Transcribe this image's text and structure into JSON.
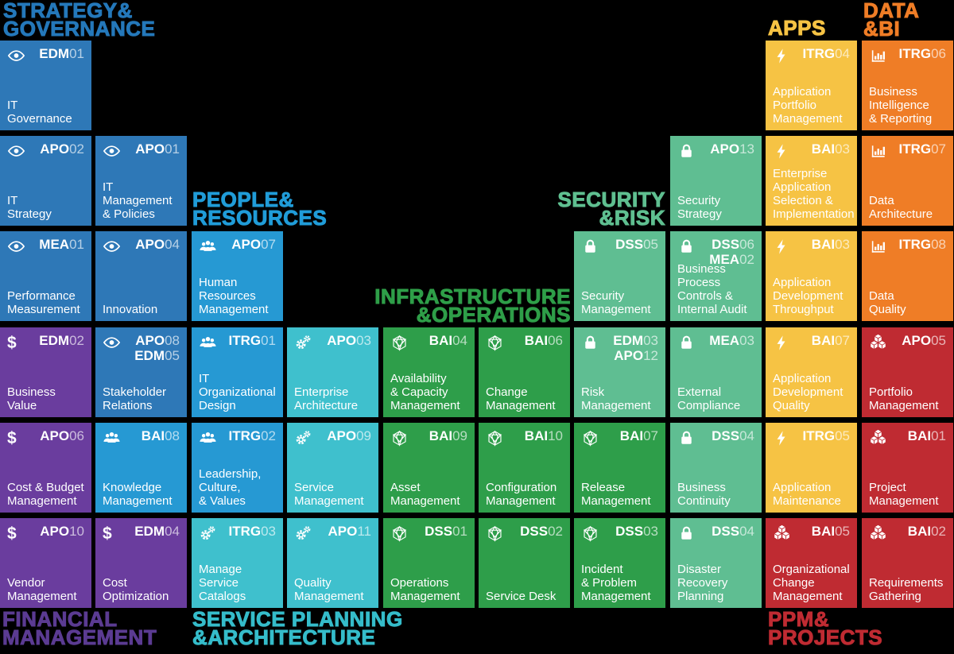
{
  "headers": {
    "strategy": {
      "text": "STRATEGY&\nGOVERNANCE",
      "color": "#2478ba"
    },
    "people": {
      "text": "PEOPLE&\nRESOURCES",
      "color": "#209cd8"
    },
    "infrastructure": {
      "text": "INFRASTRUCTURE\n&OPERATIONS",
      "color": "#2e9e48"
    },
    "security": {
      "text": "SECURITY\n&RISK",
      "color": "#5fbf90"
    },
    "apps": {
      "text": "APPS",
      "color": "#f6c344"
    },
    "data_bi": {
      "text": "DATA\n&BI",
      "color": "#ef7d26"
    },
    "financial": {
      "text": "FINANCIAL\nMANAGEMENT",
      "color": "#5b3b92"
    },
    "service_planning": {
      "text": "SERVICE PLANNING\n&ARCHITECTURE",
      "color": "#35bcca"
    },
    "ppm": {
      "text": "PPM&\nPROJECTS",
      "color": "#bf2b32"
    }
  },
  "palette": {
    "blue": "#2e78b7",
    "lightblue": "#2699d3",
    "teal": "#3fc0cd",
    "green": "#2e9e4a",
    "seafoam": "#5fbe92",
    "yellow": "#f6c344",
    "orange": "#ef7d26",
    "red": "#bf2b32",
    "purple": "#6a3d9e"
  },
  "tiles": [
    {
      "col": 1,
      "row": 1,
      "color": "blue",
      "icon": "eye",
      "codes": [
        {
          "prefix": "EDM",
          "num": "01"
        }
      ],
      "name": "IT\nGovernance"
    },
    {
      "col": 9,
      "row": 1,
      "color": "yellow",
      "icon": "bolt",
      "codes": [
        {
          "prefix": "ITRG",
          "num": "04"
        }
      ],
      "name": "Application\nPortfolio\nManagement"
    },
    {
      "col": 10,
      "row": 1,
      "color": "orange",
      "icon": "chart",
      "codes": [
        {
          "prefix": "ITRG",
          "num": "06"
        }
      ],
      "name": "Business\nIntelligence\n& Reporting"
    },
    {
      "col": 1,
      "row": 2,
      "color": "blue",
      "icon": "eye",
      "codes": [
        {
          "prefix": "APO",
          "num": "02"
        }
      ],
      "name": "IT\nStrategy"
    },
    {
      "col": 2,
      "row": 2,
      "color": "blue",
      "icon": "eye",
      "codes": [
        {
          "prefix": "APO",
          "num": "01"
        }
      ],
      "name": "IT Management\n& Policies"
    },
    {
      "col": 8,
      "row": 2,
      "color": "seafoam",
      "icon": "lock",
      "codes": [
        {
          "prefix": "APO",
          "num": "13"
        }
      ],
      "name": "Security\nStrategy"
    },
    {
      "col": 9,
      "row": 2,
      "color": "yellow",
      "icon": "bolt",
      "codes": [
        {
          "prefix": "BAI",
          "num": "03"
        }
      ],
      "name": "Enterprise\nApplication\nSelection &\nImplementation"
    },
    {
      "col": 10,
      "row": 2,
      "color": "orange",
      "icon": "chart",
      "codes": [
        {
          "prefix": "ITRG",
          "num": "07"
        }
      ],
      "name": "Data\nArchitecture"
    },
    {
      "col": 1,
      "row": 3,
      "color": "blue",
      "icon": "eye",
      "codes": [
        {
          "prefix": "MEA",
          "num": "01"
        }
      ],
      "name": "Performance\nMeasurement"
    },
    {
      "col": 2,
      "row": 3,
      "color": "blue",
      "icon": "eye",
      "codes": [
        {
          "prefix": "APO",
          "num": "04"
        }
      ],
      "name": "Innovation"
    },
    {
      "col": 3,
      "row": 3,
      "color": "lightblue",
      "icon": "people",
      "codes": [
        {
          "prefix": "APO",
          "num": "07"
        }
      ],
      "name": "Human\nResources\nManagement"
    },
    {
      "col": 7,
      "row": 3,
      "color": "seafoam",
      "icon": "lock",
      "codes": [
        {
          "prefix": "DSS",
          "num": "05"
        }
      ],
      "name": "Security\nManagement"
    },
    {
      "col": 8,
      "row": 3,
      "color": "seafoam",
      "icon": "lock",
      "codes": [
        {
          "prefix": "DSS",
          "num": "06"
        },
        {
          "prefix": "MEA",
          "num": "02"
        }
      ],
      "name": "Business\nProcess\nControls &\nInternal Audit"
    },
    {
      "col": 9,
      "row": 3,
      "color": "yellow",
      "icon": "bolt",
      "codes": [
        {
          "prefix": "BAI",
          "num": "03"
        }
      ],
      "name": "Application\nDevelopment\nThroughput"
    },
    {
      "col": 10,
      "row": 3,
      "color": "orange",
      "icon": "chart",
      "codes": [
        {
          "prefix": "ITRG",
          "num": "08"
        }
      ],
      "name": "Data\nQuality"
    },
    {
      "col": 1,
      "row": 4,
      "color": "purple",
      "icon": "dollar",
      "codes": [
        {
          "prefix": "EDM",
          "num": "02"
        }
      ],
      "name": "Business\nValue"
    },
    {
      "col": 2,
      "row": 4,
      "color": "blue",
      "icon": "eye",
      "codes": [
        {
          "prefix": "APO",
          "num": "08"
        },
        {
          "prefix": "EDM",
          "num": "05"
        }
      ],
      "name": "Stakeholder\nRelations"
    },
    {
      "col": 3,
      "row": 4,
      "color": "lightblue",
      "icon": "people",
      "codes": [
        {
          "prefix": "ITRG",
          "num": "01"
        }
      ],
      "name": "IT\nOrganizational\nDesign"
    },
    {
      "col": 4,
      "row": 4,
      "color": "teal",
      "icon": "gears",
      "codes": [
        {
          "prefix": "APO",
          "num": "03"
        }
      ],
      "name": "Enterprise\nArchitecture"
    },
    {
      "col": 5,
      "row": 4,
      "color": "green",
      "icon": "hex",
      "codes": [
        {
          "prefix": "BAI",
          "num": "04"
        }
      ],
      "name": "Availability\n& Capacity\nManagement"
    },
    {
      "col": 6,
      "row": 4,
      "color": "green",
      "icon": "hex",
      "codes": [
        {
          "prefix": "BAI",
          "num": "06"
        }
      ],
      "name": "Change\nManagement"
    },
    {
      "col": 7,
      "row": 4,
      "color": "seafoam",
      "icon": "lock",
      "codes": [
        {
          "prefix": "EDM",
          "num": "03"
        },
        {
          "prefix": "APO",
          "num": "12"
        }
      ],
      "name": "Risk\nManagement"
    },
    {
      "col": 8,
      "row": 4,
      "color": "seafoam",
      "icon": "lock",
      "codes": [
        {
          "prefix": "MEA",
          "num": "03"
        }
      ],
      "name": "External\nCompliance"
    },
    {
      "col": 9,
      "row": 4,
      "color": "yellow",
      "icon": "bolt",
      "codes": [
        {
          "prefix": "BAI",
          "num": "07"
        }
      ],
      "name": "Application\nDevelopment\nQuality"
    },
    {
      "col": 10,
      "row": 4,
      "color": "red",
      "icon": "cubes",
      "codes": [
        {
          "prefix": "APO",
          "num": "05"
        }
      ],
      "name": "Portfolio\nManagement"
    },
    {
      "col": 1,
      "row": 5,
      "color": "purple",
      "icon": "dollar",
      "codes": [
        {
          "prefix": "APO",
          "num": "06"
        }
      ],
      "name": "Cost & Budget\nManagement"
    },
    {
      "col": 2,
      "row": 5,
      "color": "lightblue",
      "icon": "people",
      "codes": [
        {
          "prefix": "BAI",
          "num": "08"
        }
      ],
      "name": "Knowledge\nManagement"
    },
    {
      "col": 3,
      "row": 5,
      "color": "lightblue",
      "icon": "people",
      "codes": [
        {
          "prefix": "ITRG",
          "num": "02"
        }
      ],
      "name": "Leadership,\nCulture,\n& Values"
    },
    {
      "col": 4,
      "row": 5,
      "color": "teal",
      "icon": "gears",
      "codes": [
        {
          "prefix": "APO",
          "num": "09"
        }
      ],
      "name": "Service\nManagement"
    },
    {
      "col": 5,
      "row": 5,
      "color": "green",
      "icon": "hex",
      "codes": [
        {
          "prefix": "BAI",
          "num": "09"
        }
      ],
      "name": "Asset\nManagement"
    },
    {
      "col": 6,
      "row": 5,
      "color": "green",
      "icon": "hex",
      "codes": [
        {
          "prefix": "BAI",
          "num": "10"
        }
      ],
      "name": "Configuration\nManagement"
    },
    {
      "col": 7,
      "row": 5,
      "color": "green",
      "icon": "hex",
      "codes": [
        {
          "prefix": "BAI",
          "num": "07"
        }
      ],
      "name": "Release\nManagement"
    },
    {
      "col": 8,
      "row": 5,
      "color": "seafoam",
      "icon": "lock",
      "codes": [
        {
          "prefix": "DSS",
          "num": "04"
        }
      ],
      "name": "Business\nContinuity"
    },
    {
      "col": 9,
      "row": 5,
      "color": "yellow",
      "icon": "bolt",
      "codes": [
        {
          "prefix": "ITRG",
          "num": "05"
        }
      ],
      "name": "Application\nMaintenance"
    },
    {
      "col": 10,
      "row": 5,
      "color": "red",
      "icon": "cubes",
      "codes": [
        {
          "prefix": "BAI",
          "num": "01"
        }
      ],
      "name": "Project\nManagement"
    },
    {
      "col": 1,
      "row": 6,
      "color": "purple",
      "icon": "dollar",
      "codes": [
        {
          "prefix": "APO",
          "num": "10"
        }
      ],
      "name": "Vendor\nManagement"
    },
    {
      "col": 2,
      "row": 6,
      "color": "purple",
      "icon": "dollar",
      "codes": [
        {
          "prefix": "EDM",
          "num": "04"
        }
      ],
      "name": "Cost\nOptimization"
    },
    {
      "col": 3,
      "row": 6,
      "color": "teal",
      "icon": "gears",
      "codes": [
        {
          "prefix": "ITRG",
          "num": "03"
        }
      ],
      "name": "Manage\nService\nCatalogs"
    },
    {
      "col": 4,
      "row": 6,
      "color": "teal",
      "icon": "gears",
      "codes": [
        {
          "prefix": "APO",
          "num": "11"
        }
      ],
      "name": "Quality\nManagement"
    },
    {
      "col": 5,
      "row": 6,
      "color": "green",
      "icon": "hex",
      "codes": [
        {
          "prefix": "DSS",
          "num": "01"
        }
      ],
      "name": "Operations\nManagement"
    },
    {
      "col": 6,
      "row": 6,
      "color": "green",
      "icon": "hex",
      "codes": [
        {
          "prefix": "DSS",
          "num": "02"
        }
      ],
      "name": "Service Desk"
    },
    {
      "col": 7,
      "row": 6,
      "color": "green",
      "icon": "hex",
      "codes": [
        {
          "prefix": "DSS",
          "num": "03"
        }
      ],
      "name": "Incident\n& Problem\nManagement"
    },
    {
      "col": 8,
      "row": 6,
      "color": "seafoam",
      "icon": "lock",
      "codes": [
        {
          "prefix": "DSS",
          "num": "04"
        }
      ],
      "name": "Disaster\nRecovery\nPlanning"
    },
    {
      "col": 9,
      "row": 6,
      "color": "red",
      "icon": "cubes",
      "codes": [
        {
          "prefix": "BAI",
          "num": "05"
        }
      ],
      "name": "Organizational\nChange\nManagement"
    },
    {
      "col": 10,
      "row": 6,
      "color": "red",
      "icon": "cubes",
      "codes": [
        {
          "prefix": "BAI",
          "num": "02"
        }
      ],
      "name": "Requirements\nGathering"
    }
  ]
}
